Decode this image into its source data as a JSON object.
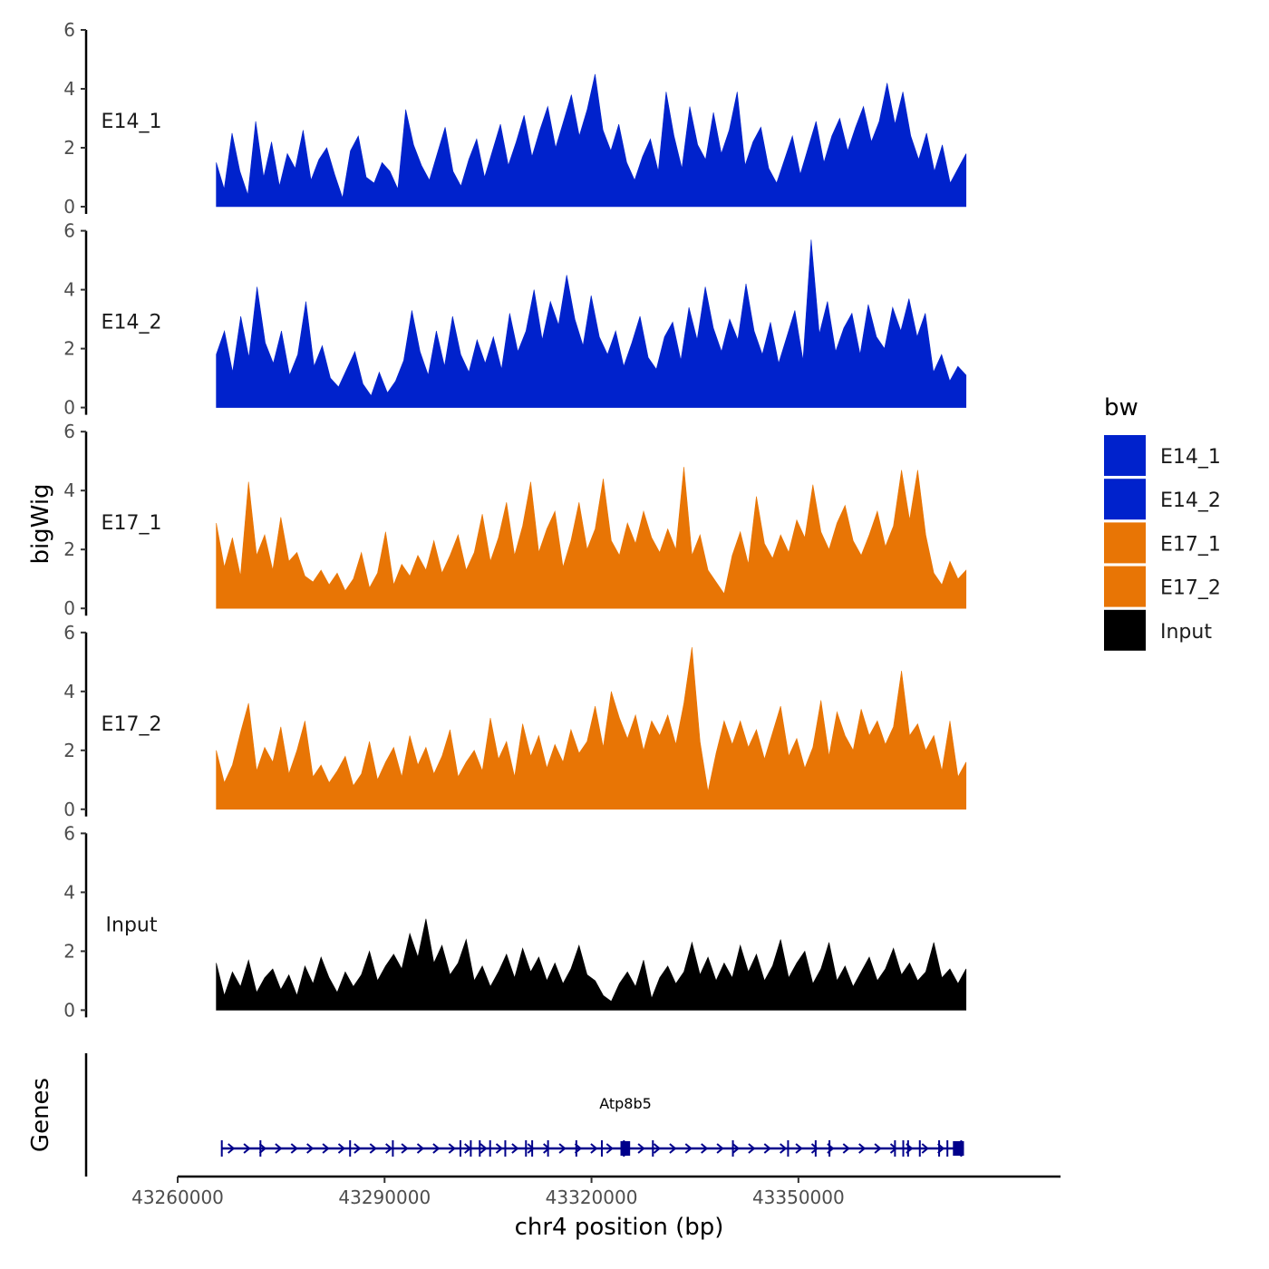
{
  "chart_data": {
    "type": "area",
    "xlabel": "chr4 position (bp)",
    "ylabel": "bigWig",
    "genes_label": "Genes",
    "xlim": [
      43260000,
      43388000
    ],
    "x_ticks": [
      43260000,
      43290000,
      43320000,
      43350000
    ],
    "x_tick_labels": [
      "43260000",
      "43290000",
      "43320000",
      "43350000"
    ],
    "data_range": [
      43265600,
      43374300
    ],
    "ylim": [
      0,
      6
    ],
    "y_ticks": [
      0,
      2,
      4,
      6
    ],
    "y_tick_labels": [
      "0",
      "2",
      "4",
      "6"
    ],
    "legend": {
      "title": "bw",
      "entries": [
        {
          "label": "E14_1",
          "color": "#0022CC"
        },
        {
          "label": "E14_2",
          "color": "#0022CC"
        },
        {
          "label": "E17_1",
          "color": "#E87505"
        },
        {
          "label": "E17_2",
          "color": "#E87505"
        },
        {
          "label": "Input",
          "color": "#000000"
        }
      ]
    },
    "series": [
      {
        "name": "E14_1",
        "color": "#0022CC",
        "values": [
          1.5,
          0.6,
          2.5,
          1.2,
          0.4,
          2.9,
          1.0,
          2.2,
          0.7,
          1.8,
          1.3,
          2.6,
          0.9,
          1.6,
          2.0,
          1.1,
          0.3,
          1.9,
          2.4,
          1.0,
          0.8,
          1.5,
          1.2,
          0.6,
          3.3,
          2.1,
          1.4,
          0.9,
          1.8,
          2.7,
          1.2,
          0.7,
          1.6,
          2.3,
          1.0,
          1.9,
          2.8,
          1.4,
          2.2,
          3.1,
          1.7,
          2.6,
          3.4,
          2.0,
          2.9,
          3.8,
          2.4,
          3.3,
          4.5,
          2.6,
          1.9,
          2.8,
          1.5,
          0.9,
          1.7,
          2.3,
          1.2,
          3.9,
          2.4,
          1.3,
          3.4,
          2.1,
          1.6,
          3.2,
          1.8,
          2.6,
          3.9,
          1.4,
          2.2,
          2.7,
          1.3,
          0.8,
          1.6,
          2.4,
          1.1,
          2.0,
          2.9,
          1.5,
          2.4,
          3.0,
          1.9,
          2.7,
          3.4,
          2.2,
          2.9,
          4.2,
          2.8,
          3.9,
          2.4,
          1.6,
          2.5,
          1.2,
          2.1,
          0.8,
          1.3,
          1.8
        ]
      },
      {
        "name": "E14_2",
        "color": "#0022CC",
        "values": [
          1.8,
          2.6,
          1.2,
          3.1,
          1.7,
          4.1,
          2.2,
          1.5,
          2.6,
          1.1,
          1.8,
          3.6,
          1.4,
          2.1,
          1.0,
          0.7,
          1.3,
          1.9,
          0.8,
          0.4,
          1.2,
          0.5,
          0.9,
          1.6,
          3.3,
          1.9,
          1.1,
          2.6,
          1.4,
          3.1,
          1.8,
          1.2,
          2.3,
          1.5,
          2.4,
          1.3,
          3.2,
          1.9,
          2.6,
          4.0,
          2.3,
          3.6,
          2.8,
          4.5,
          3.0,
          2.1,
          3.8,
          2.4,
          1.8,
          2.6,
          1.4,
          2.2,
          3.1,
          1.7,
          1.3,
          2.4,
          2.9,
          1.6,
          3.4,
          2.3,
          4.1,
          2.7,
          1.9,
          3.0,
          2.3,
          4.2,
          2.6,
          1.8,
          2.9,
          1.5,
          2.4,
          3.3,
          1.6,
          5.7,
          2.5,
          3.6,
          1.9,
          2.7,
          3.2,
          1.8,
          3.5,
          2.4,
          2.0,
          3.4,
          2.6,
          3.7,
          2.4,
          3.2,
          1.2,
          1.8,
          0.9,
          1.4,
          1.1
        ]
      },
      {
        "name": "E17_1",
        "color": "#E87505",
        "values": [
          2.9,
          1.4,
          2.4,
          1.1,
          4.3,
          1.8,
          2.5,
          1.3,
          3.1,
          1.6,
          1.9,
          1.1,
          0.9,
          1.3,
          0.8,
          1.2,
          0.6,
          1.0,
          1.9,
          0.7,
          1.2,
          2.6,
          0.8,
          1.5,
          1.1,
          1.8,
          1.3,
          2.3,
          1.2,
          1.8,
          2.5,
          1.3,
          1.9,
          3.2,
          1.6,
          2.4,
          3.6,
          1.8,
          2.8,
          4.3,
          1.9,
          2.7,
          3.3,
          1.4,
          2.3,
          3.6,
          2.0,
          2.7,
          4.4,
          2.3,
          1.8,
          2.9,
          2.2,
          3.3,
          2.4,
          1.9,
          2.7,
          2.0,
          4.8,
          1.8,
          2.5,
          1.3,
          0.9,
          0.5,
          1.8,
          2.6,
          1.5,
          3.8,
          2.2,
          1.7,
          2.5,
          1.9,
          3.0,
          2.4,
          4.2,
          2.6,
          2.0,
          2.9,
          3.5,
          2.3,
          1.8,
          2.5,
          3.3,
          2.1,
          2.8,
          4.7,
          3.0,
          4.7,
          2.5,
          1.2,
          0.8,
          1.6,
          1.0,
          1.3
        ]
      },
      {
        "name": "E17_2",
        "color": "#E87505",
        "values": [
          2.0,
          0.9,
          1.5,
          2.6,
          3.6,
          1.3,
          2.1,
          1.6,
          2.8,
          1.2,
          2.0,
          3.0,
          1.1,
          1.5,
          0.9,
          1.3,
          1.8,
          0.8,
          1.2,
          2.3,
          1.0,
          1.6,
          2.1,
          1.1,
          2.5,
          1.5,
          2.1,
          1.2,
          1.8,
          2.7,
          1.1,
          1.6,
          2.0,
          1.3,
          3.1,
          1.7,
          2.3,
          1.1,
          2.9,
          1.8,
          2.5,
          1.4,
          2.2,
          1.6,
          2.7,
          1.9,
          2.3,
          3.5,
          2.1,
          4.0,
          3.1,
          2.4,
          3.2,
          2.0,
          3.0,
          2.5,
          3.2,
          2.2,
          3.6,
          5.5,
          2.3,
          0.6,
          1.9,
          3.0,
          2.2,
          3.0,
          2.1,
          2.7,
          1.7,
          2.6,
          3.5,
          1.8,
          2.4,
          1.4,
          2.1,
          3.7,
          1.8,
          3.3,
          2.5,
          2.0,
          3.4,
          2.5,
          3.0,
          2.2,
          2.8,
          4.7,
          2.5,
          2.9,
          2.0,
          2.5,
          1.3,
          3.0,
          1.1,
          1.6
        ]
      },
      {
        "name": "Input",
        "color": "#000000",
        "values": [
          1.6,
          0.5,
          1.3,
          0.8,
          1.7,
          0.6,
          1.1,
          1.4,
          0.7,
          1.2,
          0.5,
          1.5,
          0.9,
          1.8,
          1.1,
          0.6,
          1.3,
          0.8,
          1.2,
          2.0,
          1.0,
          1.5,
          1.9,
          1.4,
          2.6,
          1.8,
          3.1,
          1.6,
          2.2,
          1.2,
          1.6,
          2.4,
          1.0,
          1.5,
          0.8,
          1.3,
          1.9,
          1.1,
          2.1,
          1.3,
          1.8,
          1.0,
          1.6,
          0.9,
          1.4,
          2.2,
          1.2,
          1.0,
          0.5,
          0.3,
          0.9,
          1.3,
          0.8,
          1.7,
          0.4,
          1.1,
          1.5,
          0.9,
          1.3,
          2.3,
          1.2,
          1.8,
          1.0,
          1.6,
          1.1,
          2.2,
          1.3,
          1.9,
          1.0,
          1.5,
          2.4,
          1.1,
          1.6,
          2.0,
          0.9,
          1.4,
          2.3,
          1.0,
          1.5,
          0.8,
          1.3,
          1.8,
          1.0,
          1.4,
          2.1,
          1.2,
          1.6,
          1.0,
          1.3,
          2.3,
          1.1,
          1.4,
          0.9,
          1.4
        ]
      }
    ],
    "genes": [
      {
        "name": "Atp8b5",
        "strand": "+",
        "color": "#00008B",
        "start": 43266400,
        "end": 43374000,
        "exons": [
          43266400,
          43272000,
          43285000,
          43291200,
          43301000,
          43302500,
          43303800,
          43305300,
          43307500,
          43310500,
          43311400,
          43313700,
          43317800,
          43321500,
          43324700,
          43328900,
          43340500,
          43348500,
          43352500,
          43354500,
          43364000,
          43365200,
          43365900,
          43367600,
          43370400,
          43371600,
          43373600
        ],
        "coding_blocks": [
          [
            43324200,
            43325600
          ],
          [
            43372400,
            43374000
          ]
        ]
      }
    ]
  }
}
